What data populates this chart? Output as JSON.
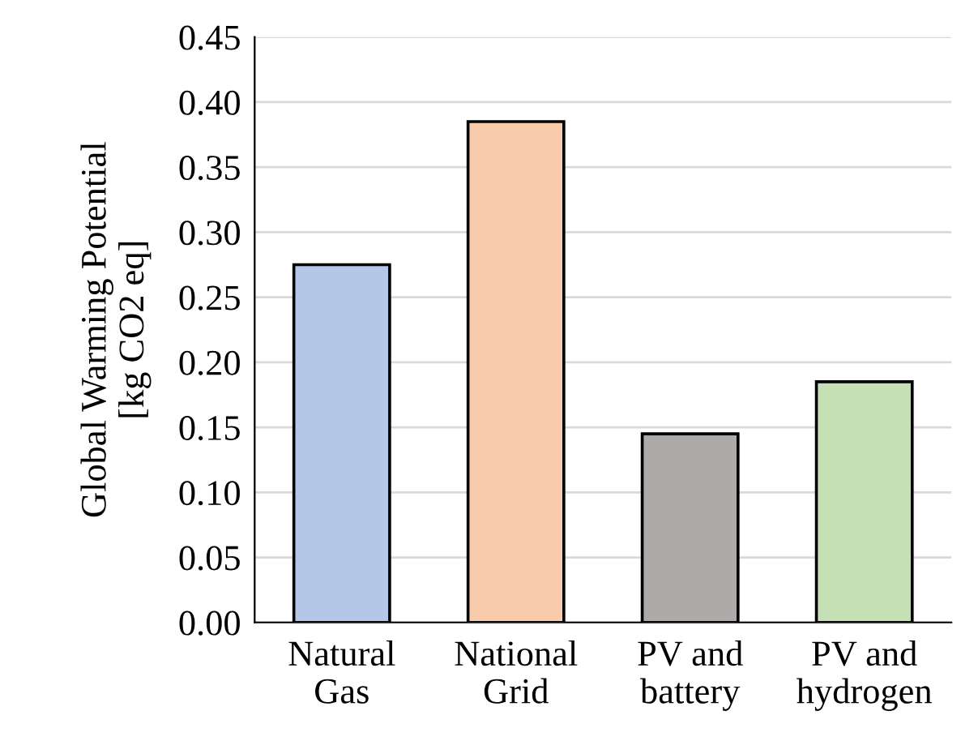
{
  "chart_data": {
    "type": "bar",
    "ylabel": "Global Warming Potential\n[kg CO2 eq]",
    "categories": [
      "Natural\nGas",
      "National\nGrid",
      "PV and\nbattery",
      "PV and\nhydrogen"
    ],
    "values": [
      0.275,
      0.385,
      0.145,
      0.185
    ],
    "colors": [
      "#b4c7e7",
      "#f8cbad",
      "#aeaaaa",
      "#c5e0b4"
    ],
    "ylim": [
      0,
      0.45
    ],
    "yticks": [
      {
        "value": 0,
        "label": "0.00"
      },
      {
        "value": 0.05,
        "label": "0.05"
      },
      {
        "value": 0.1,
        "label": "0.10"
      },
      {
        "value": 0.15,
        "label": "0.15"
      },
      {
        "value": 0.2,
        "label": "0.20"
      },
      {
        "value": 0.25,
        "label": "0.25"
      },
      {
        "value": 0.3,
        "label": "0.30"
      },
      {
        "value": 0.35,
        "label": "0.35"
      },
      {
        "value": 0.4,
        "label": "0.40"
      },
      {
        "value": 0.45,
        "label": "0.45"
      }
    ],
    "grid": "y"
  }
}
